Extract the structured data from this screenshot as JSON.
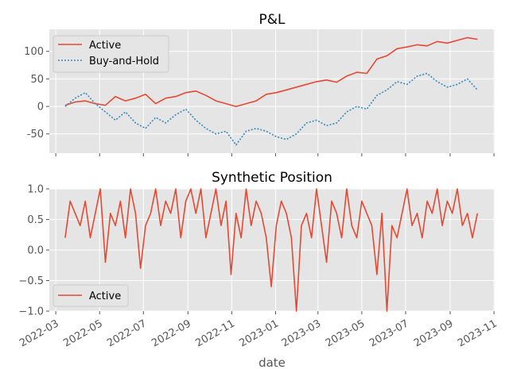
{
  "colors": {
    "active": "#e24a33",
    "buy_hold": "#348abd",
    "panel_bg": "#e5e5e5",
    "grid": "#ffffff"
  },
  "chart_data": [
    {
      "type": "line",
      "title": "P&L",
      "ylim": [
        -85,
        140
      ],
      "yticks": [
        -50,
        0,
        50,
        100
      ],
      "xlim": [
        "2022-02-20",
        "2023-11-02"
      ],
      "grid": true,
      "legend_placement": "top-left",
      "series": [
        {
          "name": "Active",
          "style": "solid",
          "x": [
            "2022-03-14",
            "2022-03-28",
            "2022-04-11",
            "2022-04-25",
            "2022-05-09",
            "2022-05-23",
            "2022-06-06",
            "2022-06-20",
            "2022-07-04",
            "2022-07-18",
            "2022-08-01",
            "2022-08-15",
            "2022-08-29",
            "2022-09-12",
            "2022-09-26",
            "2022-10-10",
            "2022-10-24",
            "2022-11-07",
            "2022-11-21",
            "2022-12-05",
            "2022-12-19",
            "2023-01-02",
            "2023-01-16",
            "2023-01-30",
            "2023-02-13",
            "2023-02-27",
            "2023-03-13",
            "2023-03-27",
            "2023-04-10",
            "2023-04-24",
            "2023-05-08",
            "2023-05-22",
            "2023-06-05",
            "2023-06-19",
            "2023-07-03",
            "2023-07-17",
            "2023-07-31",
            "2023-08-14",
            "2023-08-28",
            "2023-09-11",
            "2023-09-25",
            "2023-10-09"
          ],
          "values": [
            2,
            8,
            10,
            5,
            2,
            18,
            10,
            15,
            22,
            5,
            15,
            18,
            25,
            28,
            20,
            10,
            5,
            0,
            5,
            10,
            22,
            25,
            30,
            35,
            40,
            45,
            48,
            44,
            55,
            62,
            60,
            86,
            92,
            105,
            108,
            112,
            110,
            118,
            115,
            120,
            125,
            122
          ]
        },
        {
          "name": "Buy-and-Hold",
          "style": "dotted",
          "x": [
            "2022-03-14",
            "2022-03-28",
            "2022-04-11",
            "2022-04-25",
            "2022-05-09",
            "2022-05-23",
            "2022-06-06",
            "2022-06-20",
            "2022-07-04",
            "2022-07-18",
            "2022-08-01",
            "2022-08-15",
            "2022-08-29",
            "2022-09-12",
            "2022-09-26",
            "2022-10-10",
            "2022-10-24",
            "2022-11-07",
            "2022-11-21",
            "2022-12-05",
            "2022-12-19",
            "2023-01-02",
            "2023-01-16",
            "2023-01-30",
            "2023-02-13",
            "2023-02-27",
            "2023-03-13",
            "2023-03-27",
            "2023-04-10",
            "2023-04-24",
            "2023-05-08",
            "2023-05-22",
            "2023-06-05",
            "2023-06-19",
            "2023-07-03",
            "2023-07-17",
            "2023-07-31",
            "2023-08-14",
            "2023-08-28",
            "2023-09-11",
            "2023-09-25",
            "2023-10-09"
          ],
          "values": [
            0,
            15,
            25,
            5,
            -10,
            -25,
            -10,
            -30,
            -40,
            -20,
            -30,
            -15,
            -5,
            -25,
            -40,
            -50,
            -45,
            -70,
            -45,
            -40,
            -45,
            -55,
            -60,
            -50,
            -30,
            -25,
            -35,
            -30,
            -10,
            0,
            -5,
            20,
            30,
            45,
            40,
            55,
            60,
            45,
            35,
            40,
            50,
            30
          ]
        }
      ],
      "legend": [
        "Active",
        "Buy-and-Hold"
      ]
    },
    {
      "type": "line",
      "title": "Synthetic Position",
      "ylim": [
        -1.0,
        1.0
      ],
      "yticks": [
        -1.0,
        -0.5,
        0.0,
        0.5,
        1.0
      ],
      "ytick_labels": [
        "−1.0",
        "−0.5",
        "0.0",
        "0.5",
        "1.0"
      ],
      "xlim": [
        "2022-02-20",
        "2023-11-02"
      ],
      "grid": true,
      "legend_placement": "bottom-left",
      "xlabel": "date",
      "xticks": [
        "2022-03-01",
        "2022-05-01",
        "2022-07-01",
        "2022-09-01",
        "2022-11-01",
        "2023-01-01",
        "2023-03-01",
        "2023-05-01",
        "2023-07-01",
        "2023-09-01",
        "2023-11-01"
      ],
      "xtick_labels": [
        "2022-03",
        "2022-05",
        "2022-07",
        "2022-09",
        "2022-11",
        "2023-01",
        "2023-03",
        "2023-05",
        "2023-07",
        "2023-09",
        "2023-11"
      ],
      "series": [
        {
          "name": "Active",
          "style": "solid",
          "x": [
            "2022-03-14",
            "2022-03-21",
            "2022-03-28",
            "2022-04-04",
            "2022-04-11",
            "2022-04-18",
            "2022-04-25",
            "2022-05-02",
            "2022-05-09",
            "2022-05-16",
            "2022-05-23",
            "2022-05-30",
            "2022-06-06",
            "2022-06-13",
            "2022-06-20",
            "2022-06-27",
            "2022-07-04",
            "2022-07-11",
            "2022-07-18",
            "2022-07-25",
            "2022-08-01",
            "2022-08-08",
            "2022-08-15",
            "2022-08-22",
            "2022-08-29",
            "2022-09-05",
            "2022-09-12",
            "2022-09-19",
            "2022-09-26",
            "2022-10-03",
            "2022-10-10",
            "2022-10-17",
            "2022-10-24",
            "2022-10-31",
            "2022-11-07",
            "2022-11-14",
            "2022-11-21",
            "2022-11-28",
            "2022-12-05",
            "2022-12-12",
            "2022-12-19",
            "2022-12-26",
            "2023-01-02",
            "2023-01-09",
            "2023-01-16",
            "2023-01-23",
            "2023-01-30",
            "2023-02-06",
            "2023-02-13",
            "2023-02-20",
            "2023-02-27",
            "2023-03-06",
            "2023-03-13",
            "2023-03-20",
            "2023-03-27",
            "2023-04-03",
            "2023-04-10",
            "2023-04-17",
            "2023-04-24",
            "2023-05-01",
            "2023-05-08",
            "2023-05-15",
            "2023-05-22",
            "2023-05-29",
            "2023-06-05",
            "2023-06-12",
            "2023-06-19",
            "2023-06-26",
            "2023-07-03",
            "2023-07-10",
            "2023-07-17",
            "2023-07-24",
            "2023-07-31",
            "2023-08-07",
            "2023-08-14",
            "2023-08-21",
            "2023-08-28",
            "2023-09-04",
            "2023-09-11",
            "2023-09-18",
            "2023-09-25",
            "2023-10-02",
            "2023-10-09"
          ],
          "values": [
            0.2,
            0.8,
            0.6,
            0.4,
            0.8,
            0.2,
            0.6,
            1.0,
            -0.2,
            0.6,
            0.4,
            0.8,
            0.2,
            1.0,
            0.6,
            -0.3,
            0.4,
            0.6,
            1.0,
            0.4,
            0.8,
            0.6,
            1.0,
            0.2,
            0.8,
            1.0,
            0.6,
            1.0,
            0.2,
            0.6,
            1.0,
            0.4,
            0.8,
            -0.4,
            0.6,
            0.2,
            1.0,
            0.4,
            0.8,
            0.6,
            0.2,
            -0.6,
            0.4,
            0.8,
            0.6,
            0.2,
            -1.0,
            0.4,
            0.6,
            0.2,
            1.0,
            0.4,
            -0.2,
            0.8,
            0.6,
            0.2,
            1.0,
            0.4,
            0.2,
            0.8,
            0.6,
            0.4,
            -0.4,
            0.6,
            -1.0,
            0.4,
            0.2,
            0.6,
            1.0,
            0.4,
            0.6,
            0.2,
            0.8,
            0.6,
            1.0,
            0.4,
            0.8,
            0.6,
            1.0,
            0.4,
            0.6,
            0.2,
            0.6
          ]
        }
      ],
      "legend": [
        "Active"
      ]
    }
  ]
}
